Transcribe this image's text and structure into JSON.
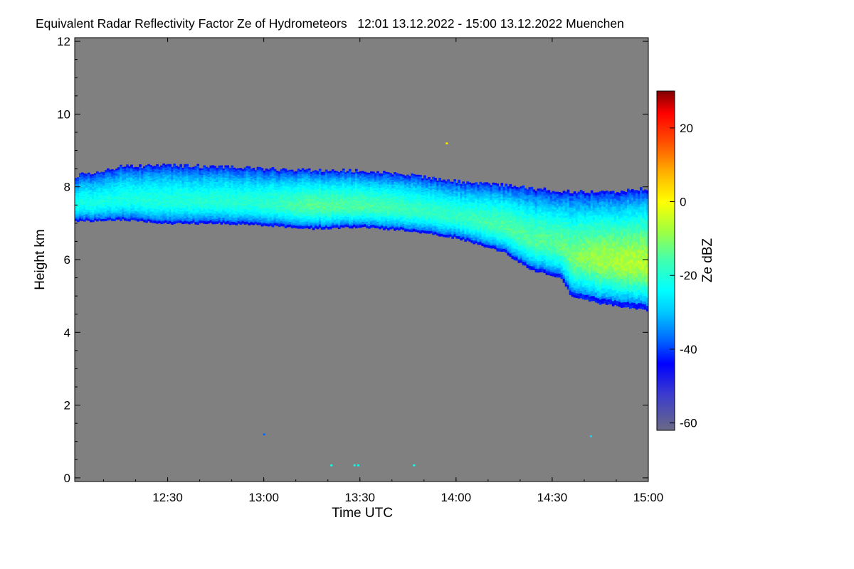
{
  "chart_data": {
    "type": "heatmap",
    "title": "Equivalent Radar Reflectivity Factor Ze of Hydrometeors   12:01 13.12.2022 - 15:00 13.12.2022 Muenchen",
    "xlabel": "Time UTC",
    "ylabel": "Height km",
    "xlim": [
      12.0167,
      15.0
    ],
    "ylim": [
      -0.1,
      12.1
    ],
    "xticks": [
      {
        "value": 12.5,
        "label": "12:30"
      },
      {
        "value": 13.0,
        "label": "13:00"
      },
      {
        "value": 13.5,
        "label": "13:30"
      },
      {
        "value": 14.0,
        "label": "14:00"
      },
      {
        "value": 14.5,
        "label": "14:30"
      },
      {
        "value": 15.0,
        "label": "15:00"
      }
    ],
    "yticks": [
      {
        "value": 0,
        "label": "0"
      },
      {
        "value": 2,
        "label": "2"
      },
      {
        "value": 4,
        "label": "4"
      },
      {
        "value": 6,
        "label": "6"
      },
      {
        "value": 8,
        "label": "8"
      },
      {
        "value": 10,
        "label": "10"
      },
      {
        "value": 12,
        "label": "12"
      }
    ],
    "colorbar": {
      "label": "Ze dBZ",
      "range": [
        -62,
        30
      ],
      "ticks": [
        {
          "value": 20,
          "label": "20"
        },
        {
          "value": 0,
          "label": "0"
        },
        {
          "value": -20,
          "label": "-20"
        },
        {
          "value": -40,
          "label": "-40"
        },
        {
          "value": -60,
          "label": "-60"
        }
      ],
      "stops": [
        {
          "value": -62,
          "color": "#6a6a86"
        },
        {
          "value": -52,
          "color": "#3a3ad0"
        },
        {
          "value": -44,
          "color": "#0000ff"
        },
        {
          "value": -38,
          "color": "#0060ff"
        },
        {
          "value": -30,
          "color": "#00c8ff"
        },
        {
          "value": -24,
          "color": "#00ffff"
        },
        {
          "value": -16,
          "color": "#40ffb0"
        },
        {
          "value": -8,
          "color": "#a0ff40"
        },
        {
          "value": 0,
          "color": "#ffff00"
        },
        {
          "value": 8,
          "color": "#ffb000"
        },
        {
          "value": 16,
          "color": "#ff5000"
        },
        {
          "value": 24,
          "color": "#ff0000"
        },
        {
          "value": 30,
          "color": "#800000"
        }
      ]
    },
    "background_color": "#808080",
    "cloud_layer": {
      "top_km": [
        [
          12.02,
          8.3
        ],
        [
          12.25,
          8.55
        ],
        [
          12.5,
          8.6
        ],
        [
          12.75,
          8.55
        ],
        [
          13.0,
          8.5
        ],
        [
          13.25,
          8.45
        ],
        [
          13.5,
          8.45
        ],
        [
          13.75,
          8.35
        ],
        [
          14.0,
          8.15
        ],
        [
          14.25,
          8.05
        ],
        [
          14.5,
          7.9
        ],
        [
          14.75,
          7.85
        ],
        [
          15.0,
          7.95
        ]
      ],
      "base_km": [
        [
          12.02,
          7.05
        ],
        [
          12.25,
          7.1
        ],
        [
          12.5,
          7.0
        ],
        [
          12.75,
          7.0
        ],
        [
          13.0,
          6.95
        ],
        [
          13.25,
          6.85
        ],
        [
          13.5,
          6.9
        ],
        [
          13.75,
          6.8
        ],
        [
          14.0,
          6.6
        ],
        [
          14.25,
          6.2
        ],
        [
          14.4,
          5.7
        ],
        [
          14.55,
          5.5
        ],
        [
          14.6,
          5.0
        ],
        [
          14.75,
          4.8
        ],
        [
          15.0,
          4.6
        ]
      ],
      "core_dbz": [
        [
          12.02,
          -22
        ],
        [
          12.5,
          -20
        ],
        [
          13.0,
          -19
        ],
        [
          13.25,
          -14
        ],
        [
          13.5,
          -15
        ],
        [
          13.75,
          -17
        ],
        [
          14.0,
          -18
        ],
        [
          14.25,
          -15
        ],
        [
          14.5,
          -14
        ],
        [
          14.75,
          -8
        ],
        [
          15.0,
          -6
        ]
      ]
    },
    "speckles": [
      {
        "time": 13.95,
        "height": 9.2,
        "dbz": 2
      },
      {
        "time": 13.0,
        "height": 1.2,
        "dbz": -38
      },
      {
        "time": 13.35,
        "height": 0.35,
        "dbz": -22
      },
      {
        "time": 13.47,
        "height": 0.35,
        "dbz": -22
      },
      {
        "time": 13.49,
        "height": 0.35,
        "dbz": -22
      },
      {
        "time": 13.78,
        "height": 0.35,
        "dbz": -22
      },
      {
        "time": 14.7,
        "height": 1.15,
        "dbz": -28
      }
    ]
  }
}
